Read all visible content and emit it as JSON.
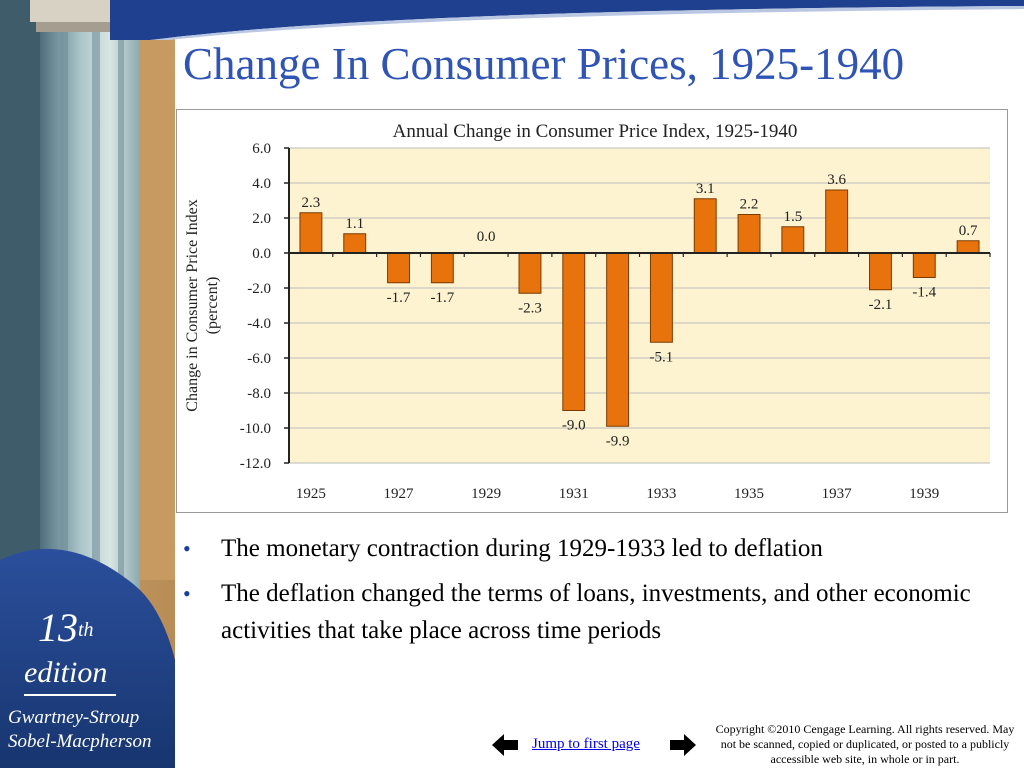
{
  "slide": {
    "title": "Change In Consumer Prices, 1925-1940",
    "bullets": [
      "The monetary contraction during 1929-1933 led to deflation",
      "The deflation changed the terms of loans, investments, and other economic activities that take place across time periods"
    ]
  },
  "cover": {
    "edition_number": "13",
    "edition_suffix": "th",
    "edition_word": "edition",
    "authors_line1": "Gwartney-Stroup",
    "authors_line2": "Sobel-Macpherson"
  },
  "footer": {
    "prev_icon": "arrow-left-icon",
    "next_icon": "arrow-right-icon",
    "jump_label": "Jump to first page",
    "copyright": "Copyright ©2010 Cengage Learning. All rights reserved. May not be scanned, copied or duplicated, or posted to a publicly accessible web site, in whole or in part."
  },
  "colors": {
    "title": "#2f54b5",
    "bar": "#e8720c",
    "plot_bg": "#fdf3d0",
    "cover_blue": "#1f3f8f"
  },
  "chart_data": {
    "type": "bar",
    "title": "Annual Change in Consumer Price Index, 1925-1940",
    "ylabel": "Change in Consumer Price Index (percent)",
    "ylabel_lines": [
      "Change in Consumer Price Index",
      "(percent)"
    ],
    "xlabel": "",
    "ylim": [
      -12,
      6
    ],
    "yticks": [
      "6.0",
      "4.0",
      "2.0",
      "0.0",
      "-2.0",
      "-4.0",
      "-6.0",
      "-8.0",
      "-10.0",
      "-12.0"
    ],
    "ytick_values": [
      6,
      4,
      2,
      0,
      -2,
      -4,
      -6,
      -8,
      -10,
      -12
    ],
    "xtick_labels": [
      "1925",
      "1927",
      "1929",
      "1931",
      "1933",
      "1935",
      "1937",
      "1939"
    ],
    "categories": [
      "1925",
      "1926",
      "1927",
      "1928",
      "1929",
      "1930",
      "1931",
      "1932",
      "1933",
      "1934",
      "1935",
      "1936",
      "1937",
      "1938",
      "1939",
      "1940"
    ],
    "values": [
      2.3,
      1.1,
      -1.7,
      -1.7,
      0.0,
      -2.3,
      -9.0,
      -9.9,
      -5.1,
      3.1,
      2.2,
      1.5,
      3.6,
      -2.1,
      -1.4,
      0.7
    ],
    "value_labels": [
      "2.3",
      "1.1",
      "-1.7",
      "-1.7",
      "0.0",
      "-2.3",
      "-9.0",
      "-9.9",
      "-5.1",
      "3.1",
      "2.2",
      "1.5",
      "3.6",
      "-2.1",
      "-1.4",
      "0.7"
    ],
    "grid": true,
    "legend": "none"
  }
}
